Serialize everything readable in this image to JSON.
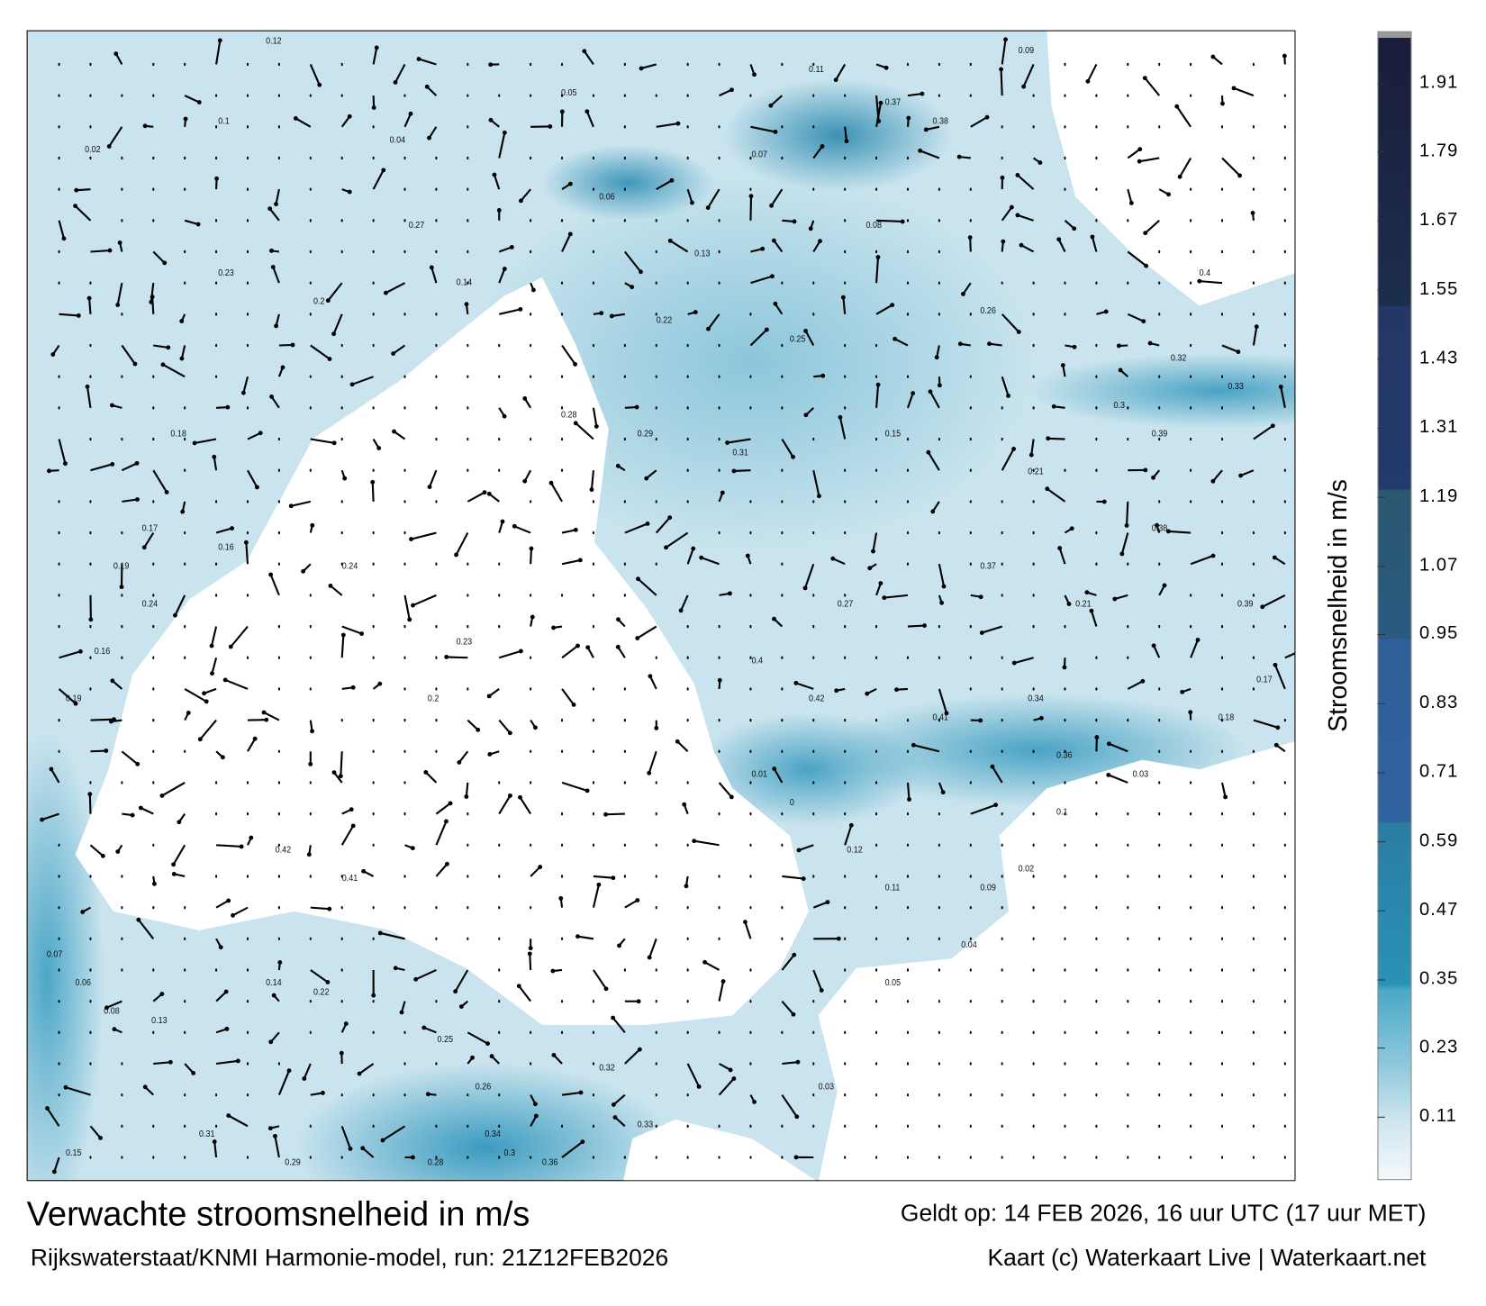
{
  "map": {
    "title": "Verwachte stroomsnelheid in m/s",
    "source": "Rijkswaterstaat/KNMI Harmonie-model, run: 21Z12FEB2026",
    "valid": "Geldt op: 14 FEB 2026, 16 uur UTC (17 uur MET)",
    "credit": "Kaart (c) Waterkaart Live | Waterkaart.net",
    "labels": [
      "0.12",
      "0.11",
      "0.09",
      "0.1",
      "0.05",
      "0.04",
      "0.02",
      "0.07",
      "0.06",
      "0.08",
      "0.13",
      "0.14",
      "0.22",
      "0.25",
      "0.26",
      "0.32",
      "0.33",
      "0.3",
      "0.28",
      "0.29",
      "0.31",
      "0.15",
      "0.21",
      "0.18",
      "0.17",
      "0.19",
      "0.16",
      "0.24",
      "0.23",
      "0.2",
      "0.27",
      "0.37",
      "0.38",
      "0.39",
      "0.4",
      "0.42",
      "0.41",
      "0.34",
      "0.36",
      "0.03",
      "0.01",
      "0"
    ]
  },
  "colorbar": {
    "title": "Stroomsnelheid in m/s",
    "ticks": [
      "1.91",
      "1.79",
      "1.67",
      "1.55",
      "1.43",
      "1.31",
      "1.19",
      "1.07",
      "0.95",
      "0.83",
      "0.71",
      "0.59",
      "0.47",
      "0.35",
      "0.23",
      "0.11"
    ],
    "max": 2.0,
    "colors": {
      "low": "#f4f9fb",
      "mid": "#2a92b5",
      "high": "#1a1c3a"
    }
  }
}
